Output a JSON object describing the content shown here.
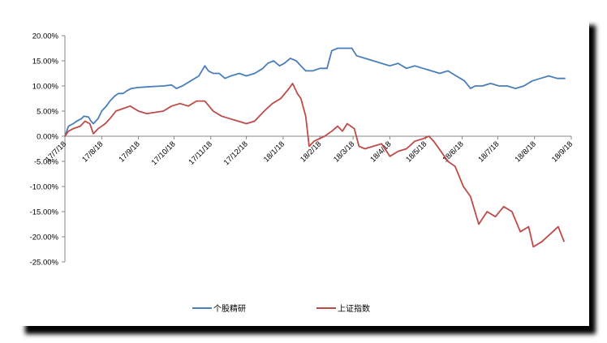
{
  "chart_data": {
    "type": "line",
    "title": "",
    "xlabel": "",
    "ylabel": "",
    "ylim": [
      -0.25,
      0.2
    ],
    "y_ticks": [
      "20.00%",
      "15.00%",
      "10.00%",
      "5.00%",
      "0.00%",
      "-5.00%",
      "-10.00%",
      "-15.00%",
      "-20.00%",
      "-25.00%"
    ],
    "x_ticks": [
      "17/7/18",
      "17/8/18",
      "17/9/18",
      "17/10/18",
      "17/11/18",
      "17/12/18",
      "18/1/18",
      "18/2/18",
      "18/3/18",
      "18/4/18",
      "18/5/18",
      "18/6/18",
      "18/7/18",
      "18/8/18",
      "18/9/18"
    ],
    "xlim": [
      "2017-07-18",
      "2018-09-18"
    ],
    "grid": false,
    "legend_position": "bottom",
    "series": [
      {
        "name": "个股精研",
        "color": "#4a7ebb",
        "points": [
          [
            "2017-07-18",
            0.0
          ],
          [
            "2017-07-21",
            0.02
          ],
          [
            "2017-07-25",
            0.025
          ],
          [
            "2017-07-28",
            0.03
          ],
          [
            "2017-08-01",
            0.035
          ],
          [
            "2017-08-03",
            0.04
          ],
          [
            "2017-08-07",
            0.038
          ],
          [
            "2017-08-09",
            0.03
          ],
          [
            "2017-08-11",
            0.025
          ],
          [
            "2017-08-15",
            0.035
          ],
          [
            "2017-08-18",
            0.05
          ],
          [
            "2017-08-22",
            0.06
          ],
          [
            "2017-08-25",
            0.07
          ],
          [
            "2017-08-29",
            0.08
          ],
          [
            "2017-09-01",
            0.085
          ],
          [
            "2017-09-05",
            0.085
          ],
          [
            "2017-09-08",
            0.09
          ],
          [
            "2017-09-12",
            0.095
          ],
          [
            "2017-09-18",
            0.097
          ],
          [
            "2017-09-25",
            0.098
          ],
          [
            "2017-10-01",
            0.099
          ],
          [
            "2017-10-09",
            0.1
          ],
          [
            "2017-10-16",
            0.102
          ],
          [
            "2017-10-20",
            0.095
          ],
          [
            "2017-10-25",
            0.1
          ],
          [
            "2017-11-01",
            0.11
          ],
          [
            "2017-11-08",
            0.12
          ],
          [
            "2017-11-13",
            0.14
          ],
          [
            "2017-11-16",
            0.13
          ],
          [
            "2017-11-20",
            0.125
          ],
          [
            "2017-11-25",
            0.125
          ],
          [
            "2017-11-30",
            0.115
          ],
          [
            "2017-12-05",
            0.12
          ],
          [
            "2017-12-12",
            0.125
          ],
          [
            "2017-12-18",
            0.12
          ],
          [
            "2017-12-25",
            0.125
          ],
          [
            "2018-01-01",
            0.135
          ],
          [
            "2018-01-05",
            0.145
          ],
          [
            "2018-01-10",
            0.15
          ],
          [
            "2018-01-15",
            0.14
          ],
          [
            "2018-01-19",
            0.145
          ],
          [
            "2018-01-24",
            0.155
          ],
          [
            "2018-01-29",
            0.15
          ],
          [
            "2018-02-02",
            0.14
          ],
          [
            "2018-02-06",
            0.13
          ],
          [
            "2018-02-12",
            0.13
          ],
          [
            "2018-02-18",
            0.135
          ],
          [
            "2018-02-24",
            0.135
          ],
          [
            "2018-02-28",
            0.17
          ],
          [
            "2018-03-05",
            0.175
          ],
          [
            "2018-03-12",
            0.175
          ],
          [
            "2018-03-17",
            0.175
          ],
          [
            "2018-03-21",
            0.16
          ],
          [
            "2018-03-28",
            0.155
          ],
          [
            "2018-04-04",
            0.15
          ],
          [
            "2018-04-11",
            0.145
          ],
          [
            "2018-04-18",
            0.14
          ],
          [
            "2018-04-25",
            0.145
          ],
          [
            "2018-05-02",
            0.135
          ],
          [
            "2018-05-09",
            0.14
          ],
          [
            "2018-05-16",
            0.135
          ],
          [
            "2018-05-23",
            0.13
          ],
          [
            "2018-05-30",
            0.125
          ],
          [
            "2018-06-06",
            0.13
          ],
          [
            "2018-06-13",
            0.12
          ],
          [
            "2018-06-20",
            0.11
          ],
          [
            "2018-06-25",
            0.095
          ],
          [
            "2018-06-29",
            0.1
          ],
          [
            "2018-07-05",
            0.1
          ],
          [
            "2018-07-12",
            0.105
          ],
          [
            "2018-07-19",
            0.1
          ],
          [
            "2018-07-26",
            0.1
          ],
          [
            "2018-08-02",
            0.095
          ],
          [
            "2018-08-09",
            0.1
          ],
          [
            "2018-08-16",
            0.11
          ],
          [
            "2018-08-23",
            0.115
          ],
          [
            "2018-08-30",
            0.12
          ],
          [
            "2018-09-06",
            0.115
          ],
          [
            "2018-09-13",
            0.115
          ]
        ]
      },
      {
        "name": "上证指数",
        "color": "#be4b48",
        "points": [
          [
            "2017-07-18",
            0.0
          ],
          [
            "2017-07-21",
            0.01
          ],
          [
            "2017-07-25",
            0.015
          ],
          [
            "2017-07-31",
            0.02
          ],
          [
            "2017-08-04",
            0.03
          ],
          [
            "2017-08-08",
            0.025
          ],
          [
            "2017-08-11",
            0.005
          ],
          [
            "2017-08-15",
            0.015
          ],
          [
            "2017-08-21",
            0.025
          ],
          [
            "2017-08-25",
            0.035
          ],
          [
            "2017-08-30",
            0.05
          ],
          [
            "2017-09-05",
            0.055
          ],
          [
            "2017-09-11",
            0.06
          ],
          [
            "2017-09-18",
            0.05
          ],
          [
            "2017-09-25",
            0.045
          ],
          [
            "2017-10-09",
            0.05
          ],
          [
            "2017-10-16",
            0.06
          ],
          [
            "2017-10-23",
            0.065
          ],
          [
            "2017-10-30",
            0.06
          ],
          [
            "2017-11-06",
            0.07
          ],
          [
            "2017-11-13",
            0.07
          ],
          [
            "2017-11-20",
            0.05
          ],
          [
            "2017-11-27",
            0.04
          ],
          [
            "2017-12-04",
            0.035
          ],
          [
            "2017-12-11",
            0.03
          ],
          [
            "2017-12-18",
            0.025
          ],
          [
            "2017-12-25",
            0.03
          ],
          [
            "2018-01-02",
            0.05
          ],
          [
            "2018-01-09",
            0.065
          ],
          [
            "2018-01-16",
            0.075
          ],
          [
            "2018-01-23",
            0.095
          ],
          [
            "2018-01-26",
            0.105
          ],
          [
            "2018-01-30",
            0.085
          ],
          [
            "2018-02-02",
            0.075
          ],
          [
            "2018-02-06",
            0.04
          ],
          [
            "2018-02-09",
            -0.02
          ],
          [
            "2018-02-13",
            -0.01
          ],
          [
            "2018-02-22",
            0.0
          ],
          [
            "2018-02-28",
            0.01
          ],
          [
            "2018-03-05",
            0.02
          ],
          [
            "2018-03-09",
            0.01
          ],
          [
            "2018-03-13",
            0.025
          ],
          [
            "2018-03-19",
            0.015
          ],
          [
            "2018-03-23",
            -0.02
          ],
          [
            "2018-03-28",
            -0.025
          ],
          [
            "2018-04-04",
            -0.02
          ],
          [
            "2018-04-11",
            -0.015
          ],
          [
            "2018-04-18",
            -0.04
          ],
          [
            "2018-04-25",
            -0.03
          ],
          [
            "2018-05-02",
            -0.025
          ],
          [
            "2018-05-09",
            -0.01
          ],
          [
            "2018-05-16",
            -0.005
          ],
          [
            "2018-05-21",
            0.0
          ],
          [
            "2018-05-25",
            -0.01
          ],
          [
            "2018-05-31",
            -0.03
          ],
          [
            "2018-06-06",
            -0.05
          ],
          [
            "2018-06-12",
            -0.06
          ],
          [
            "2018-06-19",
            -0.1
          ],
          [
            "2018-06-25",
            -0.12
          ],
          [
            "2018-07-02",
            -0.175
          ],
          [
            "2018-07-09",
            -0.15
          ],
          [
            "2018-07-16",
            -0.16
          ],
          [
            "2018-07-23",
            -0.14
          ],
          [
            "2018-07-30",
            -0.15
          ],
          [
            "2018-08-06",
            -0.19
          ],
          [
            "2018-08-13",
            -0.18
          ],
          [
            "2018-08-17",
            -0.22
          ],
          [
            "2018-08-24",
            -0.21
          ],
          [
            "2018-08-31",
            -0.195
          ],
          [
            "2018-09-07",
            -0.18
          ],
          [
            "2018-09-12",
            -0.21
          ]
        ]
      }
    ]
  }
}
